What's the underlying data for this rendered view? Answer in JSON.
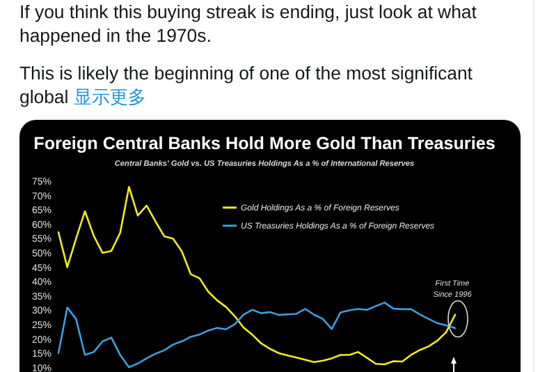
{
  "chart_data": {
    "type": "line",
    "title": "Foreign Central Banks Hold More Gold Than Treasuries",
    "subtitle": "Central Banks' Gold vs. US Treasuries Holdings As a % of International Reserves",
    "annotations": [
      "If you think this buying streak is ending, just look at what",
      "happened in the 1970s.",
      "This is likely the beginning of one of the most significant",
      "global",
      "显示更多",
      "First Time Since 1996"
    ],
    "categories": [
      null,
      null,
      null,
      null,
      null,
      null,
      null,
      null,
      null,
      null,
      null,
      null,
      null,
      null,
      null,
      null,
      null,
      null,
      null,
      null,
      null,
      null,
      null,
      null,
      null,
      null,
      null,
      null,
      null,
      null,
      null,
      null,
      null,
      null,
      null,
      null,
      null,
      null,
      null,
      null,
      null,
      null,
      null,
      null,
      null,
      null
    ],
    "series": [
      {
        "name": "Gold Holdings As a % of Foreign Reserves",
        "color": "#f2ec1c",
        "values": [
          57.2,
          45,
          55,
          64.5,
          56,
          50,
          50.7,
          57,
          73,
          63,
          66.5,
          61,
          55.8,
          55,
          50.5,
          42.6,
          41.2,
          36.5,
          33.5,
          31.2,
          28,
          24,
          21.5,
          18.5,
          16.6,
          15.1,
          14.3,
          13.6,
          12.8,
          12,
          12.5,
          13.3,
          14.5,
          14.5,
          15.5,
          13.5,
          11.4,
          11.2,
          12.3,
          12.2,
          14.5,
          16.2,
          17.5,
          19.5,
          22.5,
          28.5
        ]
      },
      {
        "name": "US Treasuries Holdings As a % of Foreign Reserves",
        "color": "#3d9fe0",
        "values": [
          15.1,
          31,
          27,
          14.5,
          15.5,
          19.2,
          20.5,
          14.5,
          10.2,
          11.5,
          13.3,
          14.9,
          16.1,
          18.1,
          19.2,
          20.8,
          21.6,
          23,
          23.9,
          23.4,
          25.2,
          28.5,
          30.2,
          29,
          29.4,
          28.4,
          28.6,
          28.8,
          30.5,
          28.5,
          27,
          23.5,
          29.3,
          30,
          30.5,
          30.2,
          31.5,
          32.7,
          30.6,
          30.4,
          30.4,
          28.6,
          27,
          25.5,
          24.8,
          23.8
        ]
      }
    ],
    "ylim": [
      10,
      75
    ],
    "yticks": [
      {
        "value": 10,
        "label": "10%"
      },
      {
        "value": 15,
        "label": "15%"
      },
      {
        "value": 20,
        "label": "20%"
      },
      {
        "value": 25,
        "label": "25%"
      },
      {
        "value": 30,
        "label": "30%"
      },
      {
        "value": 35,
        "label": "35%"
      },
      {
        "value": 40,
        "label": "40%"
      },
      {
        "value": 45,
        "label": "45%"
      },
      {
        "value": 50,
        "label": "50%"
      },
      {
        "value": 55,
        "label": "55%"
      },
      {
        "value": 60,
        "label": "60%"
      },
      {
        "value": 65,
        "label": "65%"
      },
      {
        "value": 70,
        "label": "70%"
      },
      {
        "value": 75,
        "label": "75%"
      }
    ],
    "legend": "top right",
    "grid": false
  }
}
